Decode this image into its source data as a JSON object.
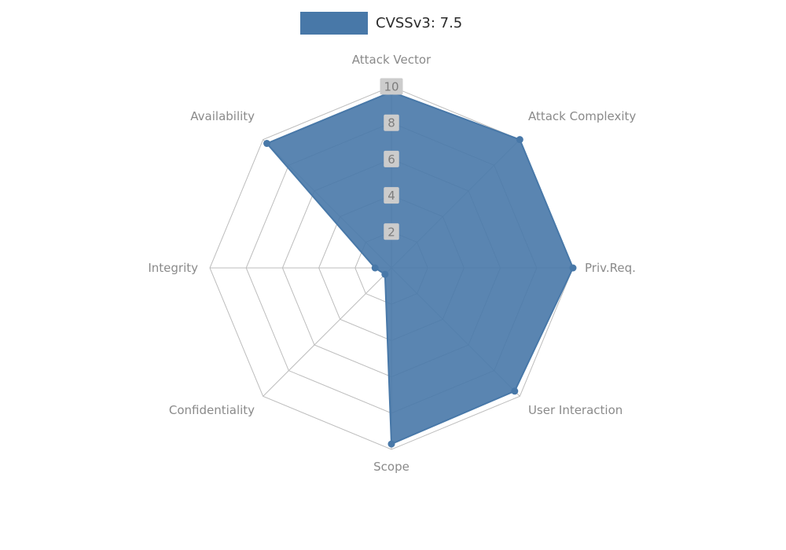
{
  "legend": {
    "label": "CVSSv3: 7.5"
  },
  "colors": {
    "series_fill": "#4878a8",
    "series_fill_opacity": 0.9,
    "series_stroke": "#4878a8",
    "series_marker": "#4878a8",
    "grid": "#bdbdbd",
    "axis_label": "#8a8a8a",
    "tick_text": "#7d7d7d",
    "tick_bg": "#cccccc",
    "legend_text": "#2b2b2b",
    "background": "#ffffff"
  },
  "chart_data": {
    "type": "radar",
    "title": "",
    "legend_position": "top-center",
    "categories": [
      "Attack Vector",
      "Attack Complexity",
      "Priv.Req.",
      "User Interaction",
      "Scope",
      "Confidentiality",
      "Integrity",
      "Availability"
    ],
    "series": [
      {
        "name": "CVSSv3: 7.5",
        "values": [
          9.7,
          10,
          10,
          9.6,
          9.7,
          0.5,
          0.9,
          9.7
        ]
      }
    ],
    "ticks": [
      2,
      4,
      6,
      8,
      10
    ],
    "rmax": 10,
    "grid": true,
    "start_axis": "top",
    "direction": "clockwise"
  }
}
